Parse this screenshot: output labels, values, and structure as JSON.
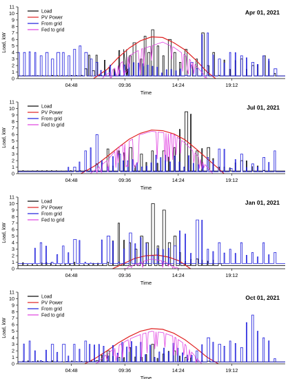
{
  "chart_data": [
    {
      "type": "line",
      "title": "Apr 01, 2021",
      "xlabel": "Time",
      "ylabel": "Load, kW",
      "ylim": [
        0,
        11
      ],
      "xlim": [
        "00:00",
        "24:00"
      ],
      "xticks": [
        "04:48",
        "09:36",
        "14:24",
        "19:12"
      ],
      "yticks": [
        0,
        1,
        2,
        3,
        4,
        5,
        6,
        7,
        8,
        9,
        10,
        11
      ],
      "legend": "top-left",
      "series": [
        {
          "name": "Load",
          "color": "#000000",
          "kind": "load",
          "base": 0.4,
          "x": [
            "00:00",
            "05:40",
            "06:00",
            "06:20",
            "06:40",
            "07:00",
            "07:20",
            "09:30",
            "09:45",
            "10:00",
            "10:20",
            "11:00",
            "11:20",
            "11:40",
            "12:00",
            "12:30",
            "13:00",
            "13:30",
            "14:00",
            "14:30",
            "15:00",
            "15:30",
            "16:00",
            "16:30",
            "17:00",
            "17:30",
            "18:00",
            "20:00",
            "21:00",
            "22:00",
            "23:00"
          ],
          "y": [
            0.4,
            0.5,
            1.5,
            3.6,
            1.2,
            3.6,
            0.5,
            4.5,
            1.5,
            3.5,
            5.5,
            3.0,
            6.5,
            4.0,
            7.5,
            5.0,
            3.5,
            6.0,
            4.0,
            2.5,
            4.5,
            2.0,
            3.0,
            7.0,
            2.0,
            4.0,
            0.5,
            3.0,
            2.0,
            3.5,
            0.8
          ]
        },
        {
          "name": "PV Power",
          "color": "#e02020",
          "kind": "pv",
          "peak": 6.5,
          "x": [
            "06:48",
            "08:00",
            "09:00",
            "10:00",
            "11:00",
            "12:00",
            "13:00",
            "14:00",
            "15:00",
            "16:00",
            "17:00",
            "17:45"
          ],
          "y": [
            0,
            1.4,
            3.2,
            4.7,
            5.8,
            6.4,
            6.3,
            5.5,
            4.4,
            2.8,
            1.0,
            0
          ]
        },
        {
          "name": "From grid",
          "color": "#1a1adc",
          "kind": "grid",
          "base": 0.4,
          "x": [
            "00:00",
            "00:30",
            "01:00",
            "01:30",
            "02:00",
            "02:30",
            "03:00",
            "03:30",
            "04:00",
            "04:30",
            "05:00",
            "05:30",
            "06:00",
            "06:30",
            "07:00",
            "15:00",
            "15:30",
            "16:00",
            "17:00",
            "18:00",
            "19:00",
            "20:00",
            "21:00",
            "22:00",
            "23:00"
          ],
          "y": [
            4.0,
            4.0,
            4.1,
            4.0,
            3.5,
            4.0,
            3.0,
            4.0,
            4.0,
            3.5,
            4.5,
            5.0,
            4.0,
            3.0,
            2.5,
            0.5,
            2.5,
            1.5,
            7.0,
            3.0,
            4.0,
            3.5,
            2.5,
            3.5,
            1.5
          ]
        },
        {
          "name": "Fed to grid",
          "color": "#e040e0",
          "kind": "fed",
          "peak": 5.6,
          "x": [
            "07:30",
            "09:00",
            "10:00",
            "11:00",
            "12:00",
            "13:00",
            "14:00",
            "15:00",
            "16:00",
            "17:00"
          ],
          "y": [
            0,
            2.0,
            3.5,
            4.5,
            5.0,
            5.6,
            4.8,
            3.6,
            2.0,
            0
          ]
        }
      ]
    },
    {
      "type": "line",
      "title": "Jul 01, 2021",
      "xlabel": "Time",
      "ylabel": "Load, kW",
      "ylim": [
        0,
        11
      ],
      "xlim": [
        "00:00",
        "24:00"
      ],
      "xticks": [
        "04:48",
        "09:36",
        "14:24",
        "19:12"
      ],
      "yticks": [
        0,
        1,
        2,
        3,
        4,
        5,
        6,
        7,
        8,
        9,
        10,
        11
      ],
      "legend": "top-left",
      "series": [
        {
          "name": "Load",
          "color": "#000000",
          "kind": "load",
          "base": 0.4,
          "x": [
            "00:00",
            "06:00",
            "07:00",
            "08:00",
            "09:00",
            "10:00",
            "11:00",
            "12:00",
            "13:00",
            "14:00",
            "15:00",
            "16:00",
            "17:00",
            "18:00",
            "20:00",
            "22:00"
          ],
          "y": [
            0.4,
            0.5,
            1.5,
            3.8,
            3.5,
            4.0,
            3.0,
            3.5,
            3.5,
            4.0,
            9.5,
            3.5,
            4.0,
            1.0,
            2.0,
            0.5
          ]
        },
        {
          "name": "PV Power",
          "color": "#e02020",
          "kind": "pv",
          "peak": 6.7,
          "x": [
            "05:40",
            "07:00",
            "08:00",
            "09:00",
            "10:00",
            "11:00",
            "12:00",
            "13:00",
            "14:00",
            "15:00",
            "16:00",
            "17:00",
            "18:00",
            "18:30"
          ],
          "y": [
            0,
            1.3,
            2.6,
            4.0,
            5.3,
            6.2,
            6.7,
            6.6,
            6.1,
            5.2,
            3.8,
            2.3,
            0.8,
            0
          ]
        },
        {
          "name": "From grid",
          "color": "#1a1adc",
          "kind": "grid",
          "base": 0.3,
          "x": [
            "00:00",
            "02:00",
            "04:00",
            "05:00",
            "06:00",
            "07:00",
            "08:00",
            "09:00",
            "17:00",
            "18:00",
            "19:00",
            "20:00",
            "21:00",
            "22:00",
            "23:00"
          ],
          "y": [
            0.3,
            0.3,
            0.3,
            1.0,
            3.5,
            6.0,
            1.0,
            3.0,
            2.5,
            3.8,
            0.8,
            3.0,
            1.5,
            2.5,
            3.5
          ]
        },
        {
          "name": "Fed to grid",
          "color": "#e040e0",
          "kind": "fed",
          "peak": 6.5,
          "x": [
            "06:30",
            "08:00",
            "09:00",
            "10:00",
            "11:00",
            "12:00",
            "13:00",
            "14:00",
            "15:00",
            "16:00",
            "17:30"
          ],
          "y": [
            0,
            2.0,
            4.0,
            5.0,
            6.0,
            6.5,
            6.3,
            6.0,
            4.7,
            3.0,
            0
          ]
        }
      ]
    },
    {
      "type": "line",
      "title": "Jan 01, 2021",
      "xlabel": "Time",
      "ylabel": "Load, kW",
      "ylim": [
        0,
        11
      ],
      "xlim": [
        "00:00",
        "24:00"
      ],
      "xticks": [
        "04:48",
        "09:36",
        "14:24",
        "19:12"
      ],
      "yticks": [
        0,
        1,
        2,
        3,
        4,
        5,
        6,
        7,
        8,
        9,
        10,
        11
      ],
      "legend": "top-left",
      "series": [
        {
          "name": "Load",
          "color": "#000000",
          "kind": "load",
          "base": 0.5,
          "x": [
            "00:00",
            "08:00",
            "09:00",
            "10:00",
            "10:30",
            "11:00",
            "11:30",
            "12:00",
            "12:30",
            "13:00",
            "13:30",
            "14:00",
            "14:30",
            "16:00",
            "18:00"
          ],
          "y": [
            0.5,
            1.0,
            7.0,
            4.0,
            3.0,
            5.0,
            4.0,
            10.0,
            3.5,
            9.0,
            4.0,
            5.0,
            2.5,
            1.5,
            0.8
          ]
        },
        {
          "name": "PV Power",
          "color": "#e02020",
          "kind": "pv",
          "peak": 2.1,
          "x": [
            "08:30",
            "09:30",
            "10:30",
            "11:30",
            "12:30",
            "13:30",
            "14:30",
            "15:30"
          ],
          "y": [
            0,
            0.8,
            1.6,
            2.0,
            2.1,
            1.8,
            1.2,
            0
          ]
        },
        {
          "name": "From grid",
          "color": "#1a1adc",
          "kind": "grid",
          "base": 0.8,
          "x": [
            "00:00",
            "01:00",
            "02:00",
            "03:00",
            "04:00",
            "05:00",
            "06:00",
            "07:00",
            "08:00",
            "09:00",
            "10:00",
            "12:00",
            "14:00",
            "16:00",
            "17:00",
            "18:00",
            "19:00",
            "20:00",
            "21:00",
            "22:00",
            "23:00"
          ],
          "y": [
            0.8,
            0.8,
            4.0,
            1.0,
            3.5,
            4.5,
            1.0,
            0.8,
            5.0,
            1.0,
            5.5,
            2.0,
            3.5,
            7.5,
            3.0,
            4.0,
            3.0,
            4.0,
            2.5,
            4.0,
            2.5
          ]
        },
        {
          "name": "Fed to grid",
          "color": "#e040e0",
          "kind": "fed",
          "peak": 1.5,
          "x": [
            "09:30",
            "11:00",
            "12:00",
            "13:00",
            "14:30"
          ],
          "y": [
            0,
            1.0,
            1.5,
            1.2,
            0
          ]
        }
      ]
    },
    {
      "type": "line",
      "title": "Oct 01, 2021",
      "xlabel": "Time",
      "ylabel": "Load, kW",
      "ylim": [
        0,
        11
      ],
      "xlim": [
        "00:00",
        "24:00"
      ],
      "xticks": [
        "04:48",
        "09:36",
        "14:24",
        "19:12"
      ],
      "yticks": [
        0,
        1,
        2,
        3,
        4,
        5,
        6,
        7,
        8,
        9,
        10,
        11
      ],
      "legend": "top-left",
      "series": [
        {
          "name": "Load",
          "color": "#000000",
          "kind": "load",
          "base": 0.3,
          "x": [
            "00:00",
            "07:00",
            "08:00",
            "09:00",
            "10:00",
            "11:00",
            "12:00",
            "13:00",
            "14:00",
            "15:00",
            "17:00"
          ],
          "y": [
            0.3,
            0.5,
            2.0,
            1.0,
            2.5,
            1.0,
            3.0,
            1.5,
            2.0,
            1.0,
            0.4
          ]
        },
        {
          "name": "PV Power",
          "color": "#e02020",
          "kind": "pv",
          "peak": 5.4,
          "x": [
            "06:00",
            "07:00",
            "08:00",
            "09:00",
            "10:00",
            "11:00",
            "12:00",
            "13:00",
            "14:00",
            "15:00",
            "16:00",
            "17:00",
            "18:00"
          ],
          "y": [
            0,
            0.9,
            2.0,
            3.2,
            4.2,
            5.0,
            5.4,
            5.3,
            4.7,
            3.7,
            2.4,
            1.0,
            0
          ]
        },
        {
          "name": "From grid",
          "color": "#1a1adc",
          "kind": "grid",
          "base": 0.3,
          "x": [
            "00:00",
            "01:00",
            "02:00",
            "03:00",
            "04:00",
            "05:00",
            "06:00",
            "16:00",
            "17:00",
            "18:00",
            "19:00",
            "20:00",
            "21:00",
            "22:00",
            "23:00"
          ],
          "y": [
            0.3,
            3.5,
            0.5,
            3.0,
            3.0,
            3.0,
            3.5,
            2.0,
            4.0,
            3.0,
            3.5,
            2.5,
            7.5,
            4.0,
            0.8
          ]
        },
        {
          "name": "Fed to grid",
          "color": "#e040e0",
          "kind": "fed",
          "peak": 5.0,
          "x": [
            "07:00",
            "08:00",
            "09:00",
            "10:00",
            "11:00",
            "12:00",
            "13:00",
            "14:00",
            "15:00",
            "16:30"
          ],
          "y": [
            0,
            1.5,
            2.8,
            3.8,
            4.5,
            5.0,
            4.8,
            4.2,
            3.0,
            0
          ]
        }
      ]
    }
  ]
}
